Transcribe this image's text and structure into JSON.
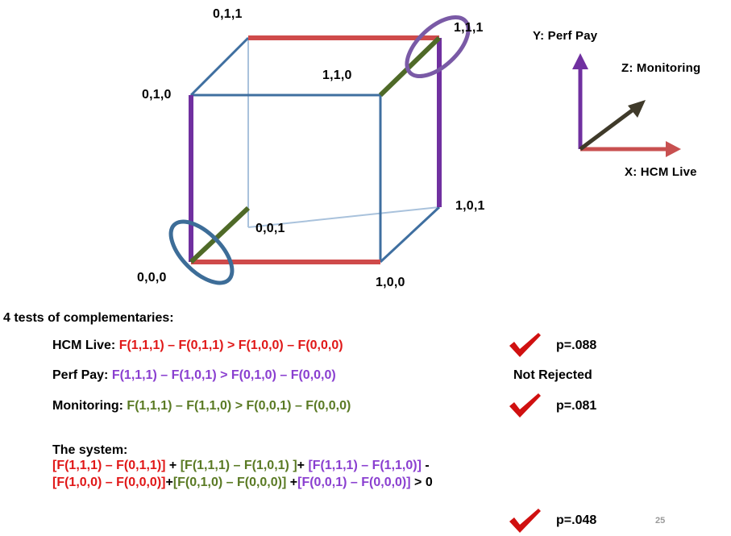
{
  "cube": {
    "vertices": {
      "v000": "0,0,0",
      "v010": "0,1,0",
      "v011": "0,1,1",
      "v111": "1,1,1",
      "v110": "1,1,0",
      "v001": "0,0,1",
      "v101": "1,0,1",
      "v100": "1,0,0"
    }
  },
  "axes": {
    "y_label": "Y: Perf Pay",
    "z_label": "Z: Monitoring",
    "x_label": "X: HCM Live"
  },
  "tests": {
    "heading": "4 tests of complementaries:",
    "rows": [
      {
        "label": "HCM Live:",
        "formula": "F(1,1,1) – F(0,1,1) > F(1,0,0) – F(0,0,0)",
        "result": "p=.088"
      },
      {
        "label": "Perf Pay:",
        "formula": "F(1,1,1) – F(1,0,1) > F(0,1,0) – F(0,0,0)",
        "result": "Not Rejected"
      },
      {
        "label": "Monitoring:",
        "formula": "F(1,1,1) – F(1,1,0) > F(0,0,1) – F(0,0,0)",
        "result": "p=.081"
      }
    ]
  },
  "system": {
    "heading": "The system:",
    "line1": {
      "t1": "[F(1,1,1) – F(0,1,1)]",
      "op1": " + ",
      "t2": "[F(1,1,1) – F(1,0,1) ]",
      "op2": "+ ",
      "t3": "[F(1,1,1) – F(1,1,0)]",
      "op3": " -"
    },
    "line2": {
      "t1": "[F(1,0,0) – F(0,0,0)]",
      "op1": "+",
      "t2": "[F(0,1,0) – F(0,0,0)]",
      "op2": " +",
      "t3": "[F(0,0,1) – F(0,0,0)]",
      "op3": " > 0"
    },
    "result": "p=.048"
  },
  "page_number": "25",
  "colors": {
    "red": "#e01818",
    "purple": "#8a3fd0",
    "green": "#5a7a24",
    "cube_blue": "#3f6fa0",
    "check": "#d01010"
  }
}
